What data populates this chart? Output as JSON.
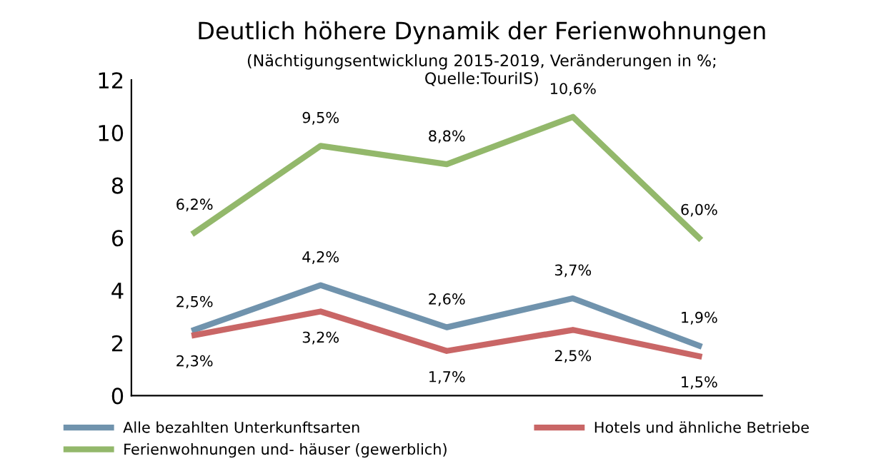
{
  "chart_data": {
    "type": "line",
    "title": "Deutlich höhere Dynamik der Ferienwohnungen",
    "subtitle": "(Nächtigungsentwicklung 2015-2019, Veränderungen in %;\nQuelle:TouriIS)",
    "categories": [
      null,
      null,
      null,
      null,
      null
    ],
    "series": [
      {
        "name": "Alle bezahlten Unterkunftsarten",
        "color": "#7093ad",
        "values": [
          2.5,
          4.2,
          2.6,
          3.7,
          1.9
        ],
        "value_labels": [
          "2,5%",
          "4,2%",
          "2,6%",
          "3,7%",
          "1,9%"
        ]
      },
      {
        "name": "Hotels und ähnliche Betriebe",
        "color": "#c96666",
        "values": [
          2.3,
          3.2,
          1.7,
          2.5,
          1.5
        ],
        "value_labels": [
          "2,3%",
          "3,2%",
          "1,7%",
          "2,5%",
          "1,5%"
        ]
      },
      {
        "name": "Ferienwohnungen und- häuser (gewerblich)",
        "color": "#93b86b",
        "values": [
          6.2,
          9.5,
          8.8,
          10.6,
          6.0
        ],
        "value_labels": [
          "6,2%",
          "9,5%",
          "8,8%",
          "10,6%",
          "6,0%"
        ]
      }
    ],
    "ylim": [
      0,
      12
    ],
    "yticks": [
      0,
      2,
      4,
      6,
      8,
      10,
      12
    ],
    "grid": false,
    "legend": "bottom",
    "marker": "none",
    "line_style": "solid"
  }
}
